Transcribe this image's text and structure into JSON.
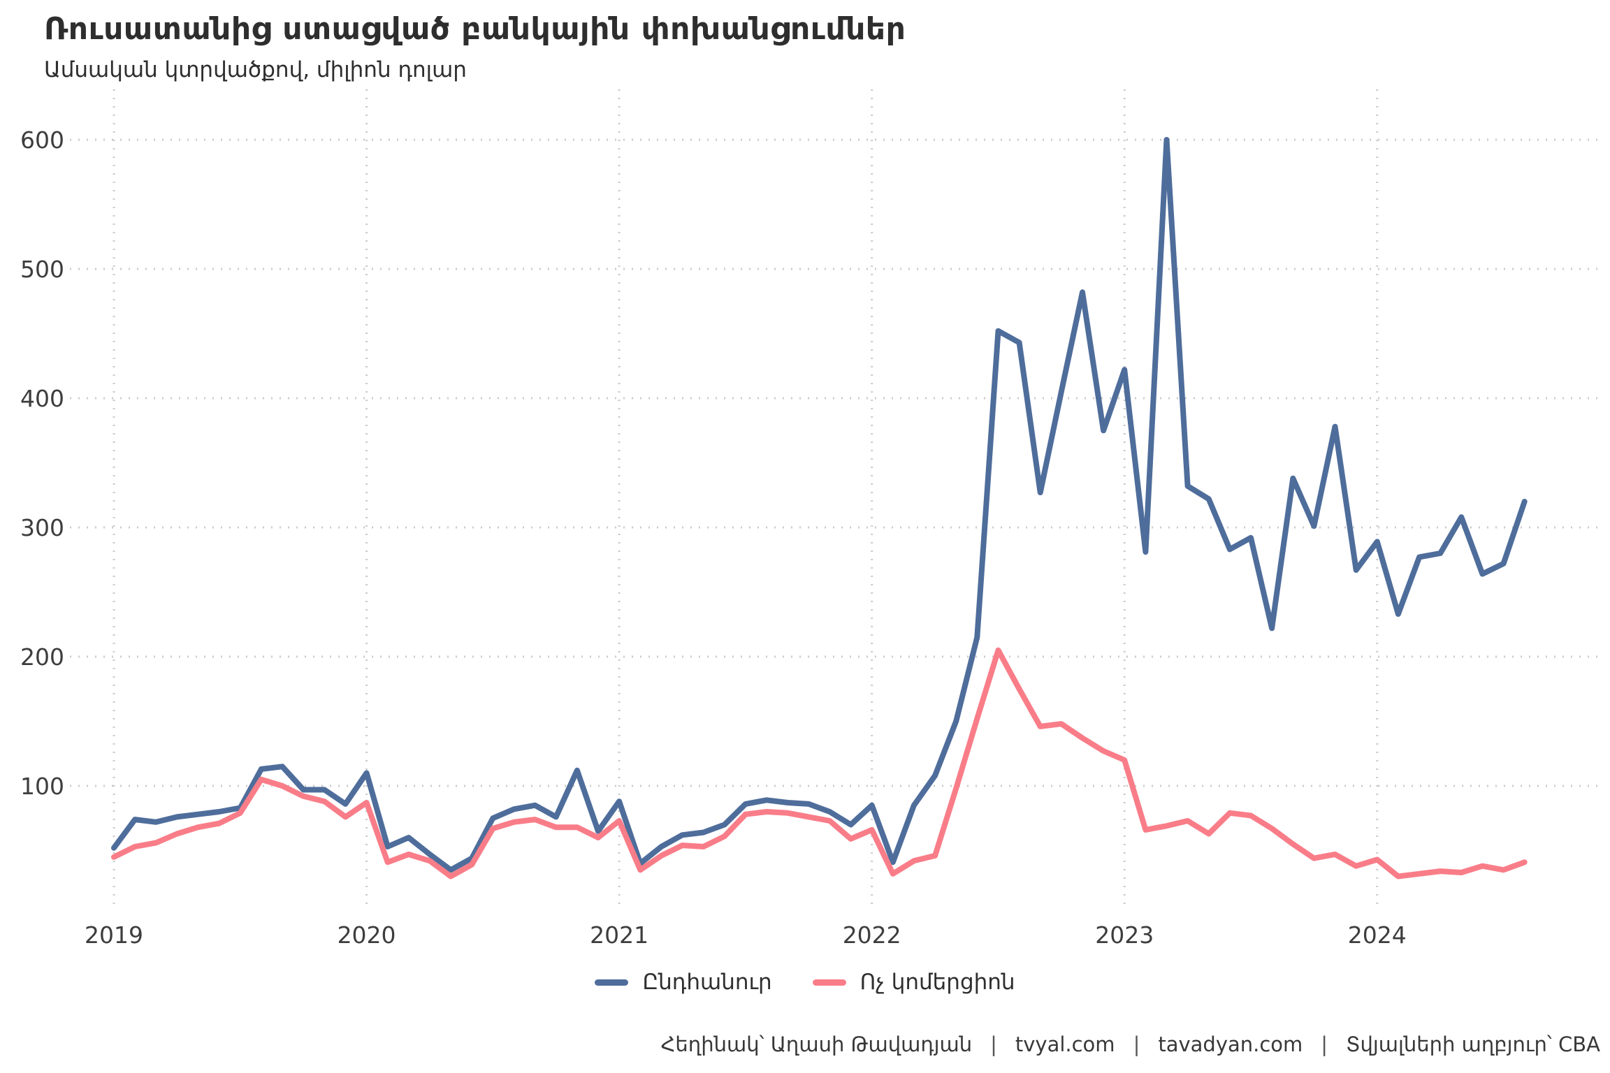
{
  "title": "Ռուսատանից ստացված բանկային փոխանցումներ",
  "subtitle": "Ամսական կտրվածքով, միլիոն դոլար",
  "legend": {
    "series1": "Ընդհանուր",
    "series2": "Ոչ կոմերցիոն"
  },
  "caption": {
    "author": "Հեղինակ՝ Աղասի Թավադյան",
    "sep": "|",
    "link1": "tvyal.com",
    "link2": "tavadyan.com",
    "source": "Տվյալների աղբյուր՝ CBA"
  },
  "colors": {
    "total": "#4e6d9b",
    "noncommercial": "#f97d88",
    "grid": "#cbcbcb",
    "text": "#2e2e2e",
    "tick_text": "#3d3d3d"
  },
  "chart_data": {
    "type": "line",
    "title": "Ռուսատանից ստացված բանկային փոխանցումներ",
    "subtitle": "Ամսական կտրվածքով, միլիոն դոլար",
    "xlabel": "",
    "ylabel": "",
    "grid": "dotted",
    "legend_position": "bottom-center",
    "x_ticks": [
      "2019",
      "2020",
      "2021",
      "2022",
      "2023",
      "2024"
    ],
    "y_ticks": [
      100,
      200,
      300,
      400,
      500,
      600
    ],
    "ylim": [
      20,
      620
    ],
    "months": [
      "2019-01",
      "2019-02",
      "2019-03",
      "2019-04",
      "2019-05",
      "2019-06",
      "2019-07",
      "2019-08",
      "2019-09",
      "2019-10",
      "2019-11",
      "2019-12",
      "2020-01",
      "2020-02",
      "2020-03",
      "2020-04",
      "2020-05",
      "2020-06",
      "2020-07",
      "2020-08",
      "2020-09",
      "2020-10",
      "2020-11",
      "2020-12",
      "2021-01",
      "2021-02",
      "2021-03",
      "2021-04",
      "2021-05",
      "2021-06",
      "2021-07",
      "2021-08",
      "2021-09",
      "2021-10",
      "2021-11",
      "2021-12",
      "2022-01",
      "2022-02",
      "2022-03",
      "2022-04",
      "2022-05",
      "2022-06",
      "2022-07",
      "2022-08",
      "2022-09",
      "2022-10",
      "2022-11",
      "2022-12",
      "2023-01",
      "2023-02",
      "2023-03",
      "2023-04",
      "2023-05",
      "2023-06",
      "2023-07",
      "2023-08",
      "2023-09",
      "2023-10",
      "2023-11",
      "2023-12",
      "2024-01",
      "2024-02",
      "2024-03",
      "2024-04",
      "2024-05",
      "2024-06",
      "2024-07",
      "2024-08"
    ],
    "series": [
      {
        "name": "Ընդհանուր",
        "color": "#4e6d9b",
        "values": [
          52,
          74,
          72,
          76,
          78,
          80,
          83,
          113,
          115,
          97,
          97,
          86,
          110,
          53,
          60,
          47,
          35,
          44,
          75,
          82,
          85,
          76,
          112,
          65,
          88,
          40,
          53,
          62,
          64,
          70,
          86,
          89,
          87,
          86,
          80,
          70,
          85,
          41,
          85,
          108,
          150,
          215,
          452,
          443,
          327,
          405,
          482,
          375,
          422,
          281,
          600,
          332,
          322,
          283,
          292,
          222,
          338,
          301,
          378,
          267,
          289,
          233,
          277,
          280,
          308,
          264,
          272,
          320
        ]
      },
      {
        "name": "Ոչ կոմերցիոն",
        "color": "#f97d88",
        "values": [
          45,
          53,
          56,
          63,
          68,
          71,
          79,
          105,
          100,
          92,
          88,
          76,
          87,
          41,
          47,
          42,
          30,
          39,
          67,
          72,
          74,
          68,
          68,
          60,
          73,
          35,
          46,
          54,
          53,
          61,
          78,
          80,
          79,
          76,
          73,
          59,
          66,
          32,
          42,
          46,
          98,
          152,
          205,
          175,
          146,
          148,
          137,
          127,
          120,
          66,
          69,
          73,
          63,
          79,
          77,
          67,
          55,
          44,
          47,
          38,
          43,
          30,
          32,
          34,
          33,
          38,
          35,
          41
        ]
      }
    ]
  }
}
